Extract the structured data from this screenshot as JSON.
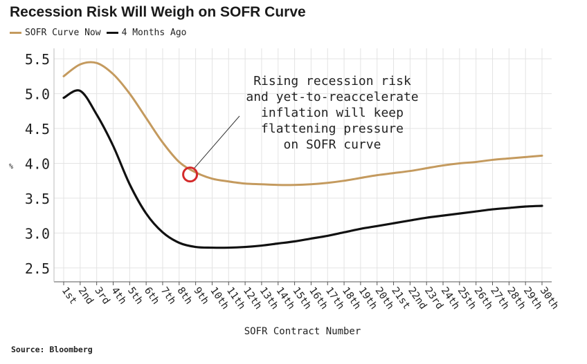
{
  "title": "Recession Risk Will Weigh on SOFR Curve",
  "source": "Source: Bloomberg",
  "colors": {
    "now": "#c49a5e",
    "ago": "#111111",
    "highlight": "#d42a2a",
    "grid": "#e3e3e3"
  },
  "chart_data": {
    "type": "line",
    "title": "Recession Risk Will Weigh on SOFR Curve",
    "xlabel": "SOFR Contract Number",
    "ylabel": "%",
    "ylim": [
      2.3,
      5.65
    ],
    "yticks": [
      "5.5",
      "5.0",
      "4.5",
      "4.0",
      "3.5",
      "3.0",
      "2.5"
    ],
    "grid": true,
    "legend_position": "top-left",
    "categories": [
      "1st",
      "2nd",
      "3rd",
      "4th",
      "5th",
      "6th",
      "7th",
      "8th",
      "9th",
      "10th",
      "11th",
      "12th",
      "13th",
      "14th",
      "15th",
      "16th",
      "17th",
      "18th",
      "19th",
      "20th",
      "21st",
      "22nd",
      "23rd",
      "24th",
      "25th",
      "26th",
      "27th",
      "28th",
      "29th",
      "30th"
    ],
    "series": [
      {
        "name": "SOFR Curve Now",
        "values": [
          5.25,
          5.42,
          5.44,
          5.28,
          5.0,
          4.65,
          4.3,
          4.02,
          3.87,
          3.78,
          3.74,
          3.71,
          3.7,
          3.69,
          3.69,
          3.7,
          3.72,
          3.75,
          3.79,
          3.83,
          3.86,
          3.89,
          3.93,
          3.97,
          4.0,
          4.02,
          4.05,
          4.07,
          4.09,
          4.11
        ]
      },
      {
        "name": "4 Months Ago",
        "values": [
          4.94,
          5.04,
          4.7,
          4.25,
          3.7,
          3.28,
          3.01,
          2.86,
          2.8,
          2.79,
          2.79,
          2.8,
          2.82,
          2.85,
          2.88,
          2.92,
          2.96,
          3.01,
          3.06,
          3.1,
          3.14,
          3.18,
          3.22,
          3.25,
          3.28,
          3.31,
          3.34,
          3.36,
          3.38,
          3.39
        ]
      }
    ],
    "annotation": {
      "lines": [
        "Rising recession risk",
        "and yet-to-reaccelerate",
        "inflation will keep",
        "flattening pressure",
        "on SOFR curve"
      ],
      "target_category": "9th",
      "target_value": 3.87
    }
  }
}
